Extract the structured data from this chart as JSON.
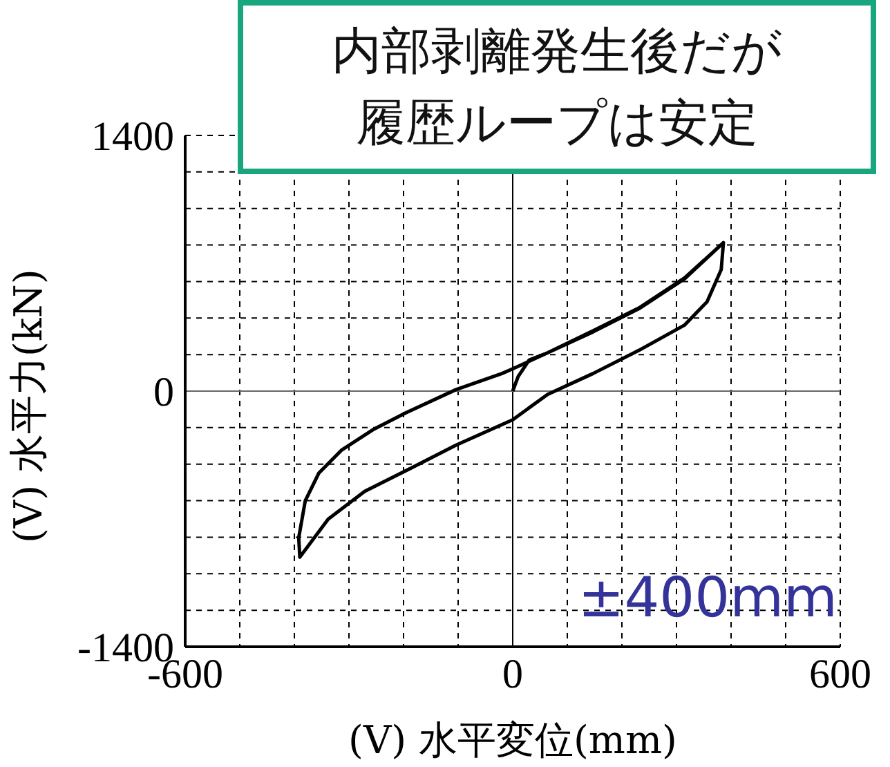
{
  "chart_data": {
    "type": "line",
    "xlabel": "(V) 水平変位(mm)",
    "ylabel": "(V) 水平力(kN)",
    "annotations": [
      "内部剥離発生後だが履歴ループは安定",
      "±400mm"
    ],
    "xlim": [
      -600,
      600
    ],
    "ylim": [
      -1400,
      1400
    ],
    "xticks": [
      -600,
      {
        "value": -500,
        "label": null
      },
      {
        "value": -400,
        "label": null
      },
      {
        "value": -300,
        "label": null
      },
      {
        "value": -200,
        "label": null
      },
      {
        "value": -100,
        "label": null
      },
      0,
      {
        "value": 100,
        "label": null
      },
      {
        "value": 200,
        "label": null
      },
      {
        "value": 300,
        "label": null
      },
      {
        "value": 400,
        "label": null
      },
      {
        "value": 500,
        "label": null
      },
      600
    ],
    "yticks": [
      -1400,
      {
        "value": -1200,
        "label": null
      },
      {
        "value": -1000,
        "label": null
      },
      {
        "value": -800,
        "label": null
      },
      {
        "value": -600,
        "label": null
      },
      {
        "value": -400,
        "label": null
      },
      {
        "value": -200,
        "label": null
      },
      0,
      {
        "value": 200,
        "label": null
      },
      {
        "value": 400,
        "label": null
      },
      {
        "value": 600,
        "label": null
      },
      {
        "value": 800,
        "label": null
      },
      {
        "value": 1000,
        "label": null
      },
      {
        "value": 1200,
        "label": null
      },
      1400
    ],
    "grid": true,
    "marker": "none",
    "line_style": "solid",
    "ref_lines": [
      {
        "axis": "x",
        "value": 0,
        "color": "#000000"
      },
      {
        "axis": "y",
        "value": 0,
        "color": "#666666"
      }
    ],
    "series": [
      {
        "color": "#000000",
        "x": [
          0,
          10,
          30,
          64,
          147,
          231,
          315,
          386,
          382,
          356,
          315,
          231,
          147,
          64,
          0,
          -104,
          -187,
          -271,
          -338,
          -390,
          -392,
          -380,
          -355,
          -313,
          -254,
          -196,
          -104,
          -20,
          0,
          64,
          147,
          231,
          315,
          386
        ],
        "values": [
          0,
          80,
          170,
          210,
          330,
          455,
          620,
          813,
          666,
          489,
          362,
          223,
          96,
          -18,
          -157,
          -296,
          -423,
          -549,
          -701,
          -909,
          -803,
          -600,
          -448,
          -322,
          -208,
          -119,
          8,
          96,
          122,
          210,
          324,
          451,
          615,
          813
        ]
      }
    ]
  }
}
